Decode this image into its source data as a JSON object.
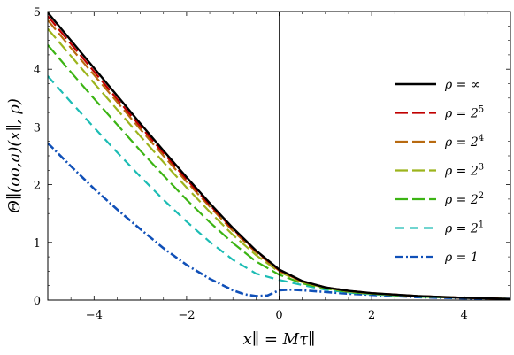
{
  "chart_data": {
    "type": "line",
    "xlabel": "x∥ = Mτ∥",
    "ylabel": "Θ∥(oo,a)(x∥, ρ)",
    "xlim": [
      -5,
      5
    ],
    "ylim": [
      0,
      5
    ],
    "xticks": [
      -4,
      -2,
      0,
      2,
      4
    ],
    "xtick_labels": [
      "−4",
      "−2",
      "0",
      "2",
      "4"
    ],
    "yticks": [
      0,
      1,
      2,
      3,
      4,
      5
    ],
    "ytick_labels": [
      "0",
      "1",
      "2",
      "3",
      "4",
      "5"
    ],
    "vertical_line_x": 0,
    "grid": false,
    "legend_position": "right",
    "series": [
      {
        "name": "ρ = ∞",
        "color": "#000000",
        "dash": "solid",
        "x": [
          -5,
          -4.5,
          -4,
          -3.5,
          -3,
          -2.5,
          -2,
          -1.5,
          -1,
          -0.5,
          0,
          0.5,
          1,
          1.5,
          2,
          3,
          4,
          5
        ],
        "y": [
          4.98,
          4.5,
          4.02,
          3.54,
          3.06,
          2.59,
          2.13,
          1.68,
          1.25,
          0.86,
          0.53,
          0.33,
          0.22,
          0.16,
          0.12,
          0.07,
          0.04,
          0.02
        ]
      },
      {
        "name": "ρ = 2^5",
        "color": "#c00000",
        "dash": "longdash",
        "x": [
          -5,
          -4.5,
          -4,
          -3.5,
          -3,
          -2.5,
          -2,
          -1.5,
          -1,
          -0.5,
          0,
          0.5,
          1,
          1.5,
          2,
          3,
          4,
          5
        ],
        "y": [
          4.92,
          4.44,
          3.96,
          3.48,
          3.01,
          2.55,
          2.09,
          1.65,
          1.23,
          0.85,
          0.52,
          0.33,
          0.22,
          0.16,
          0.12,
          0.07,
          0.04,
          0.02
        ]
      },
      {
        "name": "ρ = 2^4",
        "color": "#b86a10",
        "dash": "longdash",
        "x": [
          -5,
          -4.5,
          -4,
          -3.5,
          -3,
          -2.5,
          -2,
          -1.5,
          -1,
          -0.5,
          0,
          0.5,
          1,
          1.5,
          2,
          3,
          4,
          5
        ],
        "y": [
          4.85,
          4.37,
          3.9,
          3.43,
          2.96,
          2.5,
          2.05,
          1.62,
          1.2,
          0.83,
          0.51,
          0.32,
          0.22,
          0.16,
          0.12,
          0.07,
          0.04,
          0.02
        ]
      },
      {
        "name": "ρ = 2^3",
        "color": "#9cb41c",
        "dash": "longdash",
        "x": [
          -5,
          -4.5,
          -4,
          -3.5,
          -3,
          -2.5,
          -2,
          -1.5,
          -1,
          -0.5,
          0,
          0.5,
          1,
          1.5,
          2,
          3,
          4,
          5
        ],
        "y": [
          4.7,
          4.23,
          3.76,
          3.3,
          2.84,
          2.39,
          1.95,
          1.53,
          1.13,
          0.78,
          0.49,
          0.31,
          0.21,
          0.15,
          0.11,
          0.07,
          0.04,
          0.02
        ]
      },
      {
        "name": "ρ = 2^2",
        "color": "#3cb414",
        "dash": "longdash",
        "x": [
          -5,
          -4.5,
          -4,
          -3.5,
          -3,
          -2.5,
          -2,
          -1.5,
          -1,
          -0.5,
          0,
          0.5,
          1,
          1.5,
          2,
          3,
          4,
          5
        ],
        "y": [
          4.42,
          3.95,
          3.49,
          3.04,
          2.59,
          2.16,
          1.74,
          1.35,
          0.99,
          0.67,
          0.44,
          0.29,
          0.2,
          0.14,
          0.11,
          0.06,
          0.04,
          0.02
        ]
      },
      {
        "name": "ρ = 2^1",
        "color": "#1cbcb4",
        "dash": "dashed",
        "x": [
          -5,
          -4.5,
          -4,
          -3.5,
          -3,
          -2.5,
          -2,
          -1.5,
          -1,
          -0.5,
          0,
          0.5,
          1,
          1.5,
          2,
          3,
          4,
          5
        ],
        "y": [
          3.88,
          3.43,
          2.99,
          2.56,
          2.14,
          1.74,
          1.36,
          1.01,
          0.7,
          0.46,
          0.35,
          0.26,
          0.18,
          0.13,
          0.1,
          0.06,
          0.04,
          0.02
        ]
      },
      {
        "name": "ρ = 1",
        "color": "#1050b8",
        "dash": "dashdot",
        "x": [
          -5,
          -4.5,
          -4,
          -3.5,
          -3,
          -2.5,
          -2,
          -1.5,
          -1,
          -0.75,
          -0.5,
          -0.25,
          0,
          0.25,
          0.5,
          1,
          1.5,
          2,
          3,
          4,
          5
        ],
        "y": [
          2.72,
          2.32,
          1.93,
          1.57,
          1.23,
          0.9,
          0.61,
          0.37,
          0.17,
          0.1,
          0.07,
          0.08,
          0.17,
          0.18,
          0.17,
          0.14,
          0.11,
          0.09,
          0.05,
          0.03,
          0.02
        ]
      }
    ]
  }
}
